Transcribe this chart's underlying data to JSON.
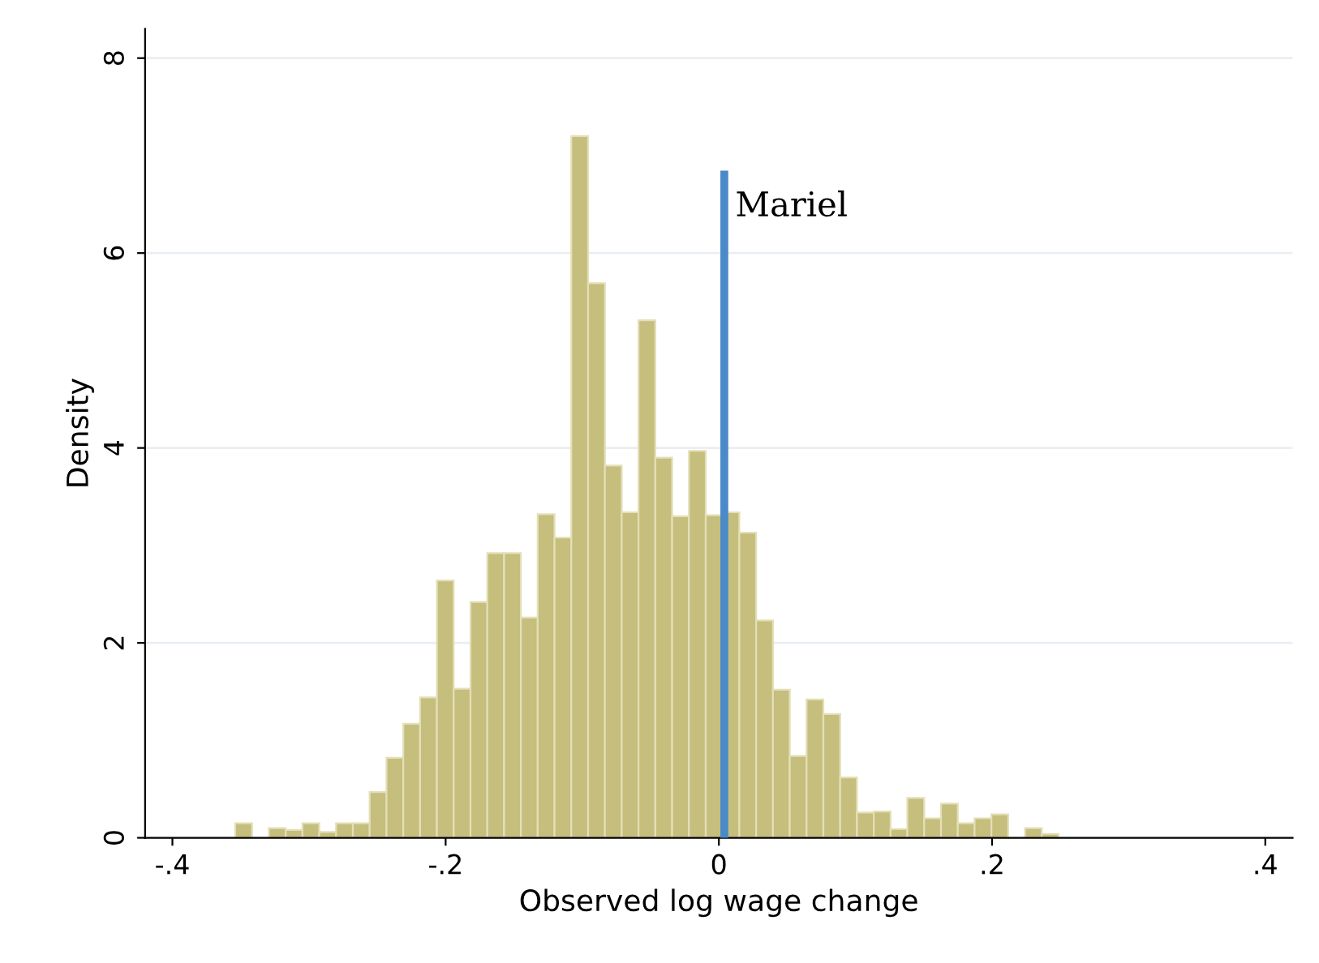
{
  "chart_data": {
    "type": "histogram",
    "xlabel": "Observed log wage change",
    "ylabel": "Density",
    "bins": [
      -0.354,
      -0.3417,
      -0.3294,
      -0.3171,
      -0.3048,
      -0.2925,
      -0.2802,
      -0.2679,
      -0.2556,
      -0.2433,
      -0.231,
      -0.2187,
      -0.2064,
      -0.1941,
      -0.1818,
      -0.1695,
      -0.1572,
      -0.1449,
      -0.1326,
      -0.1203,
      -0.108,
      -0.0957,
      -0.0834,
      -0.0711,
      -0.0588,
      -0.0465,
      -0.0342,
      -0.0219,
      -0.0096,
      0.0027,
      0.015,
      0.0273,
      0.0396,
      0.0519,
      0.0642,
      0.0765,
      0.0888,
      0.1011,
      0.1134,
      0.1257,
      0.138,
      0.1503,
      0.1626,
      0.1749,
      0.1872,
      0.1995,
      0.2118,
      0.2241,
      0.2364,
      0.2487
    ],
    "values": [
      0.15,
      0,
      0.1,
      0.08,
      0.15,
      0.06,
      0.15,
      0.15,
      0.47,
      0.82,
      1.17,
      1.44,
      2.64,
      1.53,
      2.42,
      2.92,
      2.92,
      2.26,
      3.32,
      3.08,
      7.2,
      5.69,
      3.82,
      3.34,
      5.31,
      3.9,
      3.3,
      3.97,
      3.31,
      3.34,
      3.13,
      2.23,
      1.52,
      0.84,
      1.42,
      1.27,
      0.62,
      0.26,
      0.27,
      0.09,
      0.41,
      0.2,
      0.35,
      0.15,
      0.2,
      0.24,
      0,
      0.1,
      0.04
    ],
    "color": "#c5be7c",
    "xlim": [
      -0.42,
      0.42
    ],
    "ylim": [
      0,
      8.3
    ],
    "xticks": [
      {
        "value": -0.4,
        "label": "-.4"
      },
      {
        "value": -0.2,
        "label": "-.2"
      },
      0,
      {
        "value": 0.2,
        "label": ".2"
      },
      {
        "value": 0.4,
        "label": ".4"
      }
    ],
    "yticks": [
      0,
      2,
      4,
      6,
      8
    ],
    "grid": "y",
    "ref_lines": [
      {
        "axis": "x",
        "value": 0.004,
        "label": "Mariel",
        "color": "#4a8ac9"
      }
    ]
  }
}
